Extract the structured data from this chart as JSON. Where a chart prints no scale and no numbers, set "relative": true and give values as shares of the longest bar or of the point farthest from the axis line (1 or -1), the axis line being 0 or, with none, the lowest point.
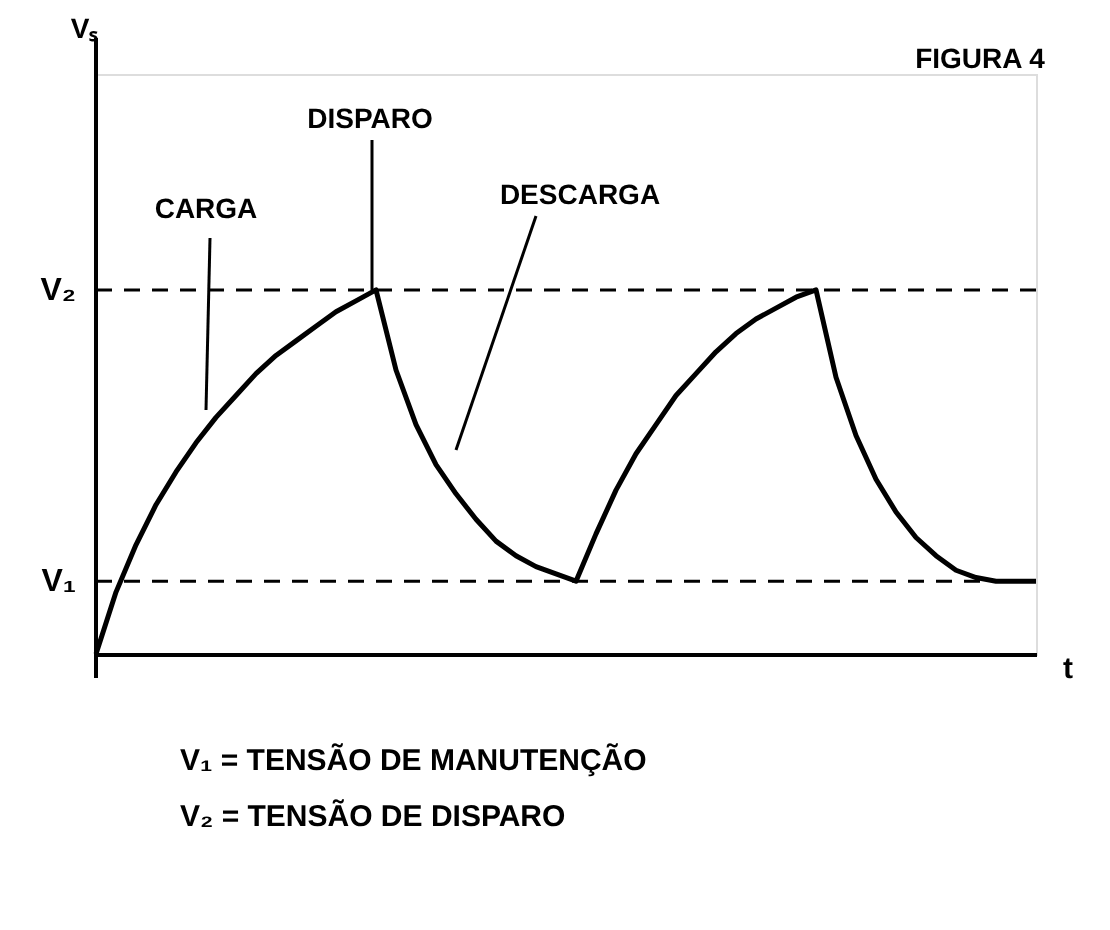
{
  "chart_data": {
    "type": "line",
    "title": "FIGURA 4",
    "xlabel": "t",
    "relative": true,
    "grid": false,
    "categories": [
      null,
      null,
      null,
      null,
      null,
      null,
      null,
      null,
      null,
      null,
      null,
      null,
      null,
      null,
      null,
      null,
      null,
      null,
      null,
      null,
      null,
      null,
      null,
      null,
      null,
      null,
      null,
      null,
      null,
      null,
      null,
      null,
      null,
      null,
      null,
      null,
      null,
      null,
      null,
      null,
      null,
      null,
      null,
      null,
      null,
      null,
      null,
      null
    ],
    "series": [
      {
        "color": "#000000",
        "values": [
          0,
          0.17,
          0.3,
          0.41,
          0.5,
          0.58,
          0.65,
          0.71,
          0.77,
          0.82,
          0.86,
          0.9,
          0.94,
          0.97,
          1.0,
          0.78,
          0.63,
          0.52,
          0.44,
          0.37,
          0.31,
          0.27,
          0.24,
          0.22,
          0.2,
          0.33,
          0.45,
          0.55,
          0.63,
          0.71,
          0.77,
          0.83,
          0.88,
          0.92,
          0.95,
          0.98,
          1.0,
          0.76,
          0.6,
          0.48,
          0.39,
          0.32,
          0.27,
          0.23,
          0.21,
          0.2,
          0.2,
          0.2
        ]
      }
    ],
    "ref_lines": [
      {
        "axis": "y",
        "value": 1.0,
        "label": "V₂",
        "line_style": "dashed"
      },
      {
        "axis": "y",
        "value": 0.2,
        "label": "V₁",
        "line_style": "dashed"
      }
    ],
    "annotations": [
      "Vₛ",
      "DISPARO",
      "CARGA",
      "DESCARGA",
      "V₁  =  TENSÃO DE MANUTENÇÃO",
      "V₂  =  TENSÃO DE DISPARO"
    ]
  }
}
